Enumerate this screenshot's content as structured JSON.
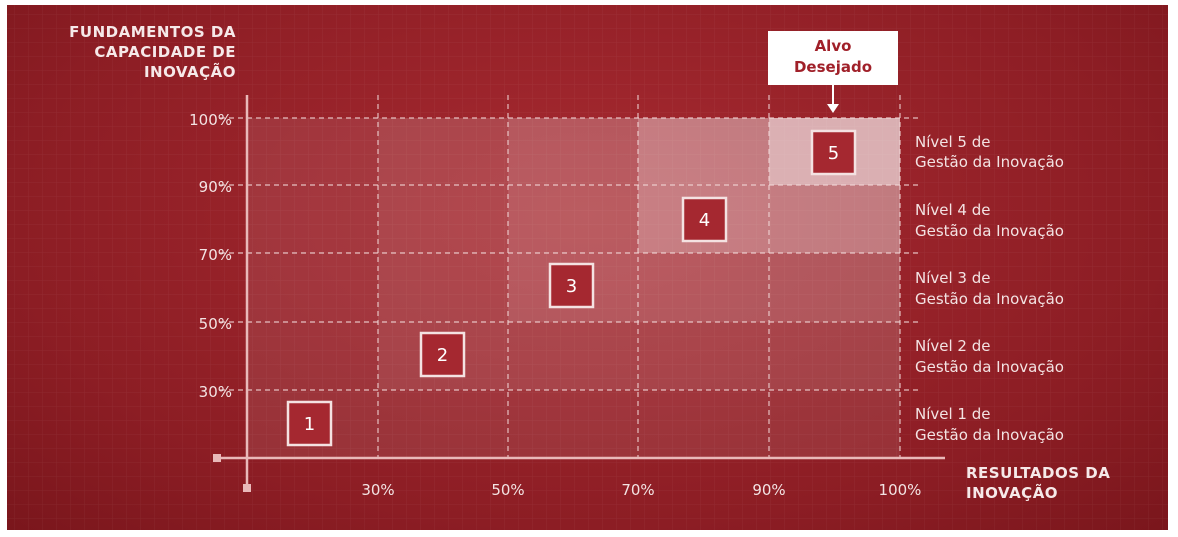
{
  "y_axis": {
    "title_lines": [
      "FUNDAMENTOS DA",
      "CAPACIDADE DE",
      "INOVAÇÃO"
    ],
    "ticks": [
      "30%",
      "50%",
      "70%",
      "90%",
      "100%"
    ]
  },
  "x_axis": {
    "title_lines": [
      "RESULTADOS DA",
      "INOVAÇÃO"
    ],
    "ticks": [
      "30%",
      "50%",
      "70%",
      "90%",
      "100%"
    ]
  },
  "target_callout": {
    "line1": "Alvo",
    "line2": "Desejado"
  },
  "levels": [
    {
      "number": "1",
      "label_line1": "Nível 1 de",
      "label_line2": "Gestão da Inovação"
    },
    {
      "number": "2",
      "label_line1": "Nível 2 de",
      "label_line2": "Gestão da Inovação"
    },
    {
      "number": "3",
      "label_line1": "Nível 3 de",
      "label_line2": "Gestão da Inovação"
    },
    {
      "number": "4",
      "label_line1": "Nível 4 de",
      "label_line2": "Gestão da Inovação"
    },
    {
      "number": "5",
      "label_line1": "Nível 5 de",
      "label_line2": "Gestão da Inovação"
    }
  ],
  "colors": {
    "background": "#93212a",
    "box_fill": "#a52830",
    "text": "#f3e3e3"
  }
}
